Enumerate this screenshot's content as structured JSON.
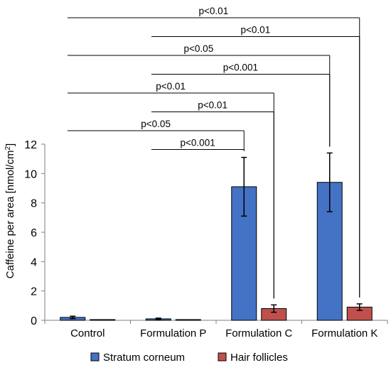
{
  "chart_data": {
    "type": "bar",
    "title": "",
    "xlabel": "",
    "ylabel": "Caffeine per area [nmol/cm²]",
    "ylabel_parts": [
      "Caffeine per area [nmol/cm",
      "2",
      "]"
    ],
    "ylim": [
      0,
      12
    ],
    "yticks": [
      "0",
      "2",
      "4",
      "6",
      "8",
      "10",
      "12"
    ],
    "categories": [
      "Control",
      "Formulation P",
      "Formulation C",
      "Formulation K"
    ],
    "series": [
      {
        "name": "Stratum corneum",
        "color": "#4472c4",
        "values": [
          0.2,
          0.1,
          9.1,
          9.4
        ],
        "errors": [
          0.08,
          0.05,
          2.0,
          2.0
        ]
      },
      {
        "name": "Hair follicles",
        "color": "#c0504d",
        "values": [
          0.05,
          0.05,
          0.8,
          0.9
        ],
        "errors": [
          0.0,
          0.0,
          0.25,
          0.22
        ]
      }
    ],
    "grid": false,
    "legend": {
      "placement": "bottom",
      "items": [
        "Stratum corneum",
        "Hair follicles"
      ]
    },
    "significance": [
      {
        "label": "p<0.01",
        "from": "Control",
        "to": "Formulation K / Hair follicles"
      },
      {
        "label": "p<0.01",
        "from": "Formulation P",
        "to": "Formulation K / Hair follicles"
      },
      {
        "label": "p<0.05",
        "from": "Control",
        "to": "Formulation K / Stratum corneum"
      },
      {
        "label": "p<0.001",
        "from": "Formulation P",
        "to": "Formulation K / Stratum corneum"
      },
      {
        "label": "p<0.01",
        "from": "Control",
        "to": "Formulation C / Hair follicles"
      },
      {
        "label": "p<0.01",
        "from": "Formulation P",
        "to": "Formulation C / Hair follicles"
      },
      {
        "label": "p<0.05",
        "from": "Control",
        "to": "Formulation C / Stratum corneum"
      },
      {
        "label": "p<0.001",
        "from": "Formulation P",
        "to": "Formulation C / Stratum corneum"
      }
    ]
  }
}
